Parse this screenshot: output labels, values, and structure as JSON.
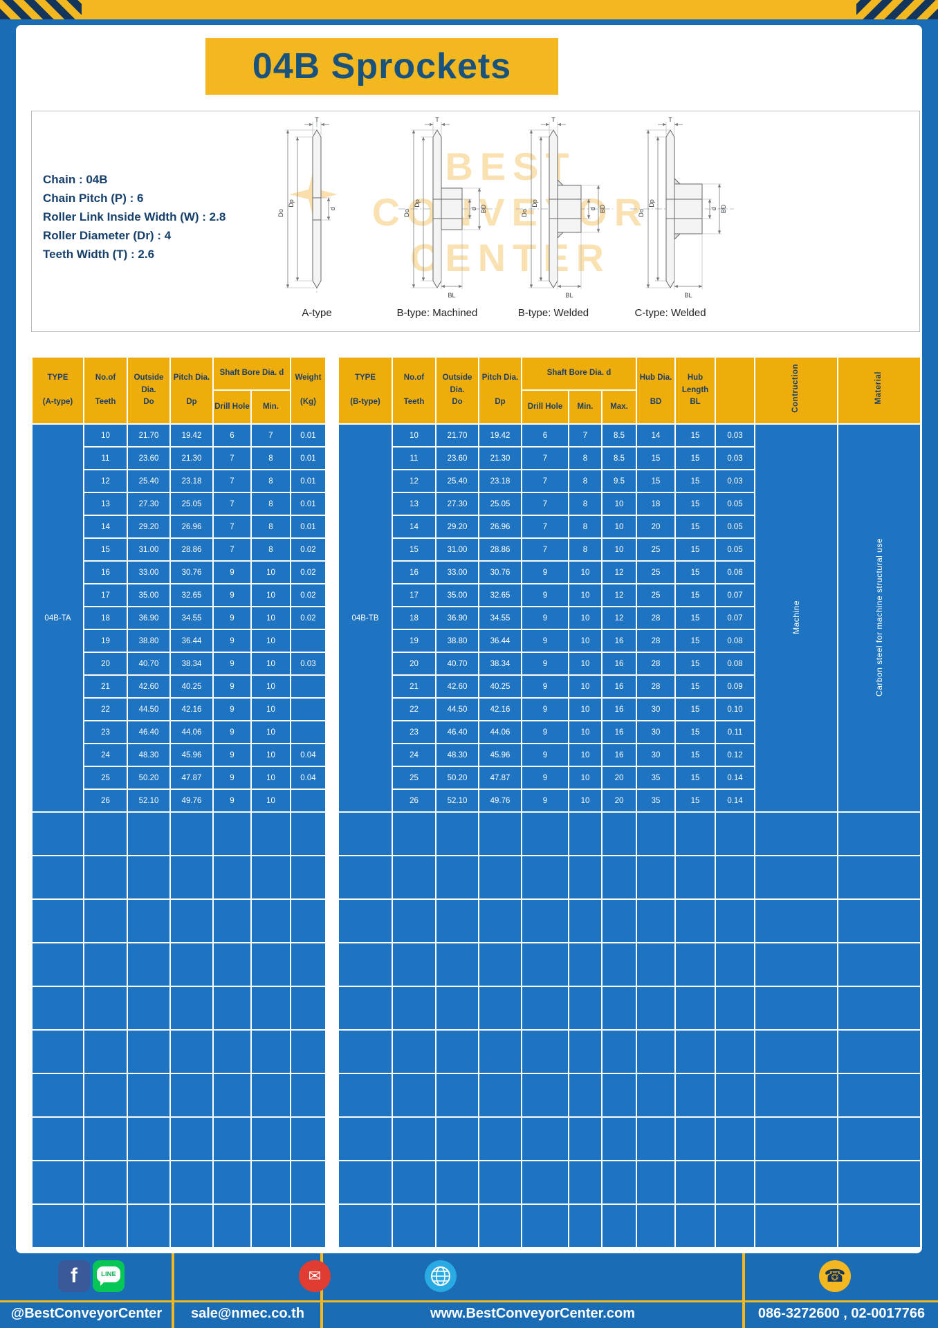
{
  "page": {
    "title": "04B Sprockets",
    "colors": {
      "background_blue": "#1a6cb5",
      "accent_yellow": "#f3b71f",
      "header_yellow": "#efad0b",
      "cell_blue": "#1e74c0",
      "navy_text": "#1d3f66"
    }
  },
  "specs": {
    "lines": [
      "Chain : 04B",
      "Chain Pitch (P) : 6",
      "Roller Link Inside Width (W) : 2.8",
      "Roller Diameter (Dr) : 4",
      "Teeth Width (T) : 2.6"
    ]
  },
  "diagram": {
    "captions": [
      "A-type",
      "B-type: Machined",
      "B-type: Welded",
      "C-type: Welded"
    ],
    "dims": {
      "t": "T",
      "dia_o": "Do",
      "dia_p": "Dp",
      "d": "d",
      "bd": "BD",
      "bl": "BL"
    },
    "watermark": {
      "lines": [
        "BEST",
        "CONVEYOR",
        "CENTER"
      ],
      "logo": "star-burst-icon"
    }
  },
  "left_table": {
    "headers": {
      "type": "TYPE\n\n(A-type)",
      "teeth": "No.of\n\nTeeth",
      "outside": "Outside\nDia.\nDo",
      "pitch": "Pitch Dia.\n\nDp",
      "shaft_group": "Shaft Bore Dia. d",
      "drill": "Drill Hole",
      "min": "Min.",
      "weight": "Weight\n\n(Kg)"
    },
    "type_value": "04B-TA",
    "rows": [
      [
        "10",
        "21.70",
        "19.42",
        "6",
        "7",
        "0.01"
      ],
      [
        "11",
        "23.60",
        "21.30",
        "7",
        "8",
        "0.01"
      ],
      [
        "12",
        "25.40",
        "23.18",
        "7",
        "8",
        "0.01"
      ],
      [
        "13",
        "27.30",
        "25.05",
        "7",
        "8",
        "0.01"
      ],
      [
        "14",
        "29.20",
        "26.96",
        "7",
        "8",
        "0.01"
      ],
      [
        "15",
        "31.00",
        "28.86",
        "7",
        "8",
        "0.02"
      ],
      [
        "16",
        "33.00",
        "30.76",
        "9",
        "10",
        "0.02"
      ],
      [
        "17",
        "35.00",
        "32.65",
        "9",
        "10",
        "0.02"
      ],
      [
        "18",
        "36.90",
        "34.55",
        "9",
        "10",
        "0.02"
      ],
      [
        "19",
        "38.80",
        "36.44",
        "9",
        "10",
        ""
      ],
      [
        "20",
        "40.70",
        "38.34",
        "9",
        "10",
        "0.03"
      ],
      [
        "21",
        "42.60",
        "40.25",
        "9",
        "10",
        ""
      ],
      [
        "22",
        "44.50",
        "42.16",
        "9",
        "10",
        ""
      ],
      [
        "23",
        "46.40",
        "44.06",
        "9",
        "10",
        ""
      ],
      [
        "24",
        "48.30",
        "45.96",
        "9",
        "10",
        "0.04"
      ],
      [
        "25",
        "50.20",
        "47.87",
        "9",
        "10",
        "0.04"
      ],
      [
        "26",
        "52.10",
        "49.76",
        "9",
        "10",
        ""
      ]
    ],
    "empty_rows": 10
  },
  "right_table": {
    "headers": {
      "type": "TYPE\n\n(B-type)",
      "teeth": "No.of\n\nTeeth",
      "outside": "Outside\nDia.\nDo",
      "pitch": "Pitch Dia.\n\nDp",
      "shaft_group": "Shaft Bore Dia. d",
      "drill": "Drill Hole",
      "min": "Min.",
      "max": "Max.",
      "hub_dia": "Hub Dia.\n\nBD",
      "hub_len": "Hub\nLength\nBL",
      "construction": "Contruction",
      "material": "Material"
    },
    "type_value": "04B-TB",
    "construction_value": "Machine",
    "material_value": "Carbon steel for machine structural use",
    "rows": [
      [
        "10",
        "21.70",
        "19.42",
        "6",
        "7",
        "8.5",
        "14",
        "15",
        "0.03"
      ],
      [
        "11",
        "23.60",
        "21.30",
        "7",
        "8",
        "8.5",
        "15",
        "15",
        "0.03"
      ],
      [
        "12",
        "25.40",
        "23.18",
        "7",
        "8",
        "9.5",
        "15",
        "15",
        "0.03"
      ],
      [
        "13",
        "27.30",
        "25.05",
        "7",
        "8",
        "10",
        "18",
        "15",
        "0.05"
      ],
      [
        "14",
        "29.20",
        "26.96",
        "7",
        "8",
        "10",
        "20",
        "15",
        "0.05"
      ],
      [
        "15",
        "31.00",
        "28.86",
        "7",
        "8",
        "10",
        "25",
        "15",
        "0.05"
      ],
      [
        "16",
        "33.00",
        "30.76",
        "9",
        "10",
        "12",
        "25",
        "15",
        "0.06"
      ],
      [
        "17",
        "35.00",
        "32.65",
        "9",
        "10",
        "12",
        "25",
        "15",
        "0.07"
      ],
      [
        "18",
        "36.90",
        "34.55",
        "9",
        "10",
        "12",
        "28",
        "15",
        "0.07"
      ],
      [
        "19",
        "38.80",
        "36.44",
        "9",
        "10",
        "16",
        "28",
        "15",
        "0.08"
      ],
      [
        "20",
        "40.70",
        "38.34",
        "9",
        "10",
        "16",
        "28",
        "15",
        "0.08"
      ],
      [
        "21",
        "42.60",
        "40.25",
        "9",
        "10",
        "16",
        "28",
        "15",
        "0.09"
      ],
      [
        "22",
        "44.50",
        "42.16",
        "9",
        "10",
        "16",
        "30",
        "15",
        "0.10"
      ],
      [
        "23",
        "46.40",
        "44.06",
        "9",
        "10",
        "16",
        "30",
        "15",
        "0.11"
      ],
      [
        "24",
        "48.30",
        "45.96",
        "9",
        "10",
        "16",
        "30",
        "15",
        "0.12"
      ],
      [
        "25",
        "50.20",
        "47.87",
        "9",
        "10",
        "20",
        "35",
        "15",
        "0.14"
      ],
      [
        "26",
        "52.10",
        "49.76",
        "9",
        "10",
        "20",
        "35",
        "15",
        "0.14"
      ]
    ],
    "empty_rows": 10
  },
  "footer": {
    "social_handle": "@BestConveyorCenter",
    "email": "sale@nmec.co.th",
    "website": "www.BestConveyorCenter.com",
    "phones": "086-3272600 , 02-0017766",
    "glyphs": {
      "facebook": "f",
      "line": "LINE",
      "email": "✉",
      "phone": "☎"
    }
  }
}
